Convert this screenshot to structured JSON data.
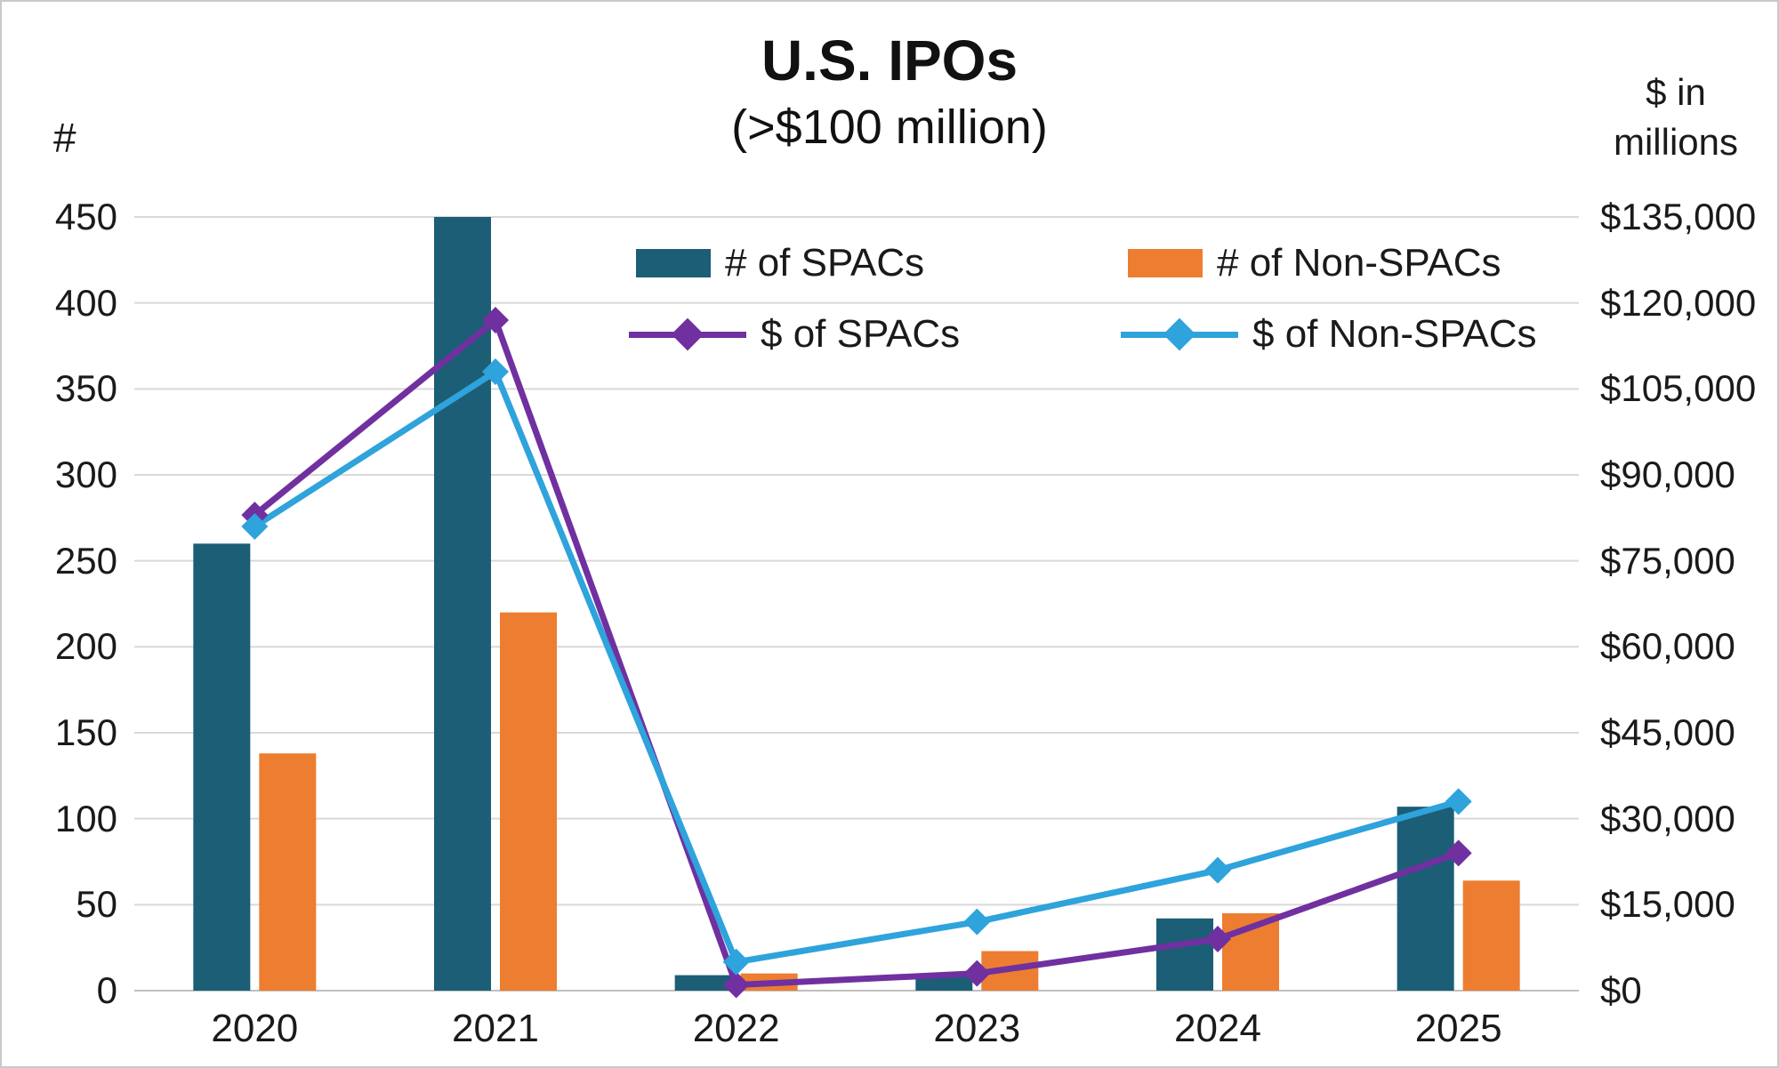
{
  "chart_data": {
    "type": "bar+line combo",
    "title": "U.S. IPOs",
    "subtitle": "(>$100 million)",
    "categories": [
      "2020",
      "2021",
      "2022",
      "2023",
      "2024",
      "2025"
    ],
    "left_axis": {
      "label": "#",
      "min": 0,
      "max": 450,
      "step": 50,
      "tick_labels": [
        "0",
        "50",
        "100",
        "150",
        "200",
        "250",
        "300",
        "350",
        "400",
        "450"
      ]
    },
    "right_axis": {
      "label": "$ in millions",
      "min": 0,
      "max": 135000,
      "step": 15000,
      "tick_labels": [
        "$0",
        "$15,000",
        "$30,000",
        "$45,000",
        "$60,000",
        "$75,000",
        "$90,000",
        "$105,000",
        "$120,000",
        "$135,000"
      ]
    },
    "bar_series": [
      {
        "name": "# of SPACs",
        "axis": "left",
        "color": "#1B5E76",
        "values": [
          260,
          450,
          9,
          10,
          42,
          107
        ]
      },
      {
        "name": "# of Non-SPACs",
        "axis": "left",
        "color": "#ED7D31",
        "values": [
          138,
          220,
          10,
          23,
          45,
          64
        ]
      }
    ],
    "line_series": [
      {
        "name": "$ of SPACs",
        "axis": "right",
        "color": "#7030A0",
        "marker": "diamond",
        "values": [
          83000,
          117000,
          1000,
          3000,
          9000,
          24000
        ]
      },
      {
        "name": "$ of Non-SPACs",
        "axis": "right",
        "color": "#2EA3DC",
        "marker": "diamond",
        "values": [
          81000,
          108000,
          5000,
          12000,
          21000,
          33000
        ]
      }
    ],
    "grid": true,
    "legend_position": "top-inside",
    "colors": {
      "grid": "#D9D9D9",
      "baseline": "#BFBFBF",
      "text": "#1A1A1A",
      "border": "#C9C9C9",
      "background": "#FFFFFF"
    }
  }
}
